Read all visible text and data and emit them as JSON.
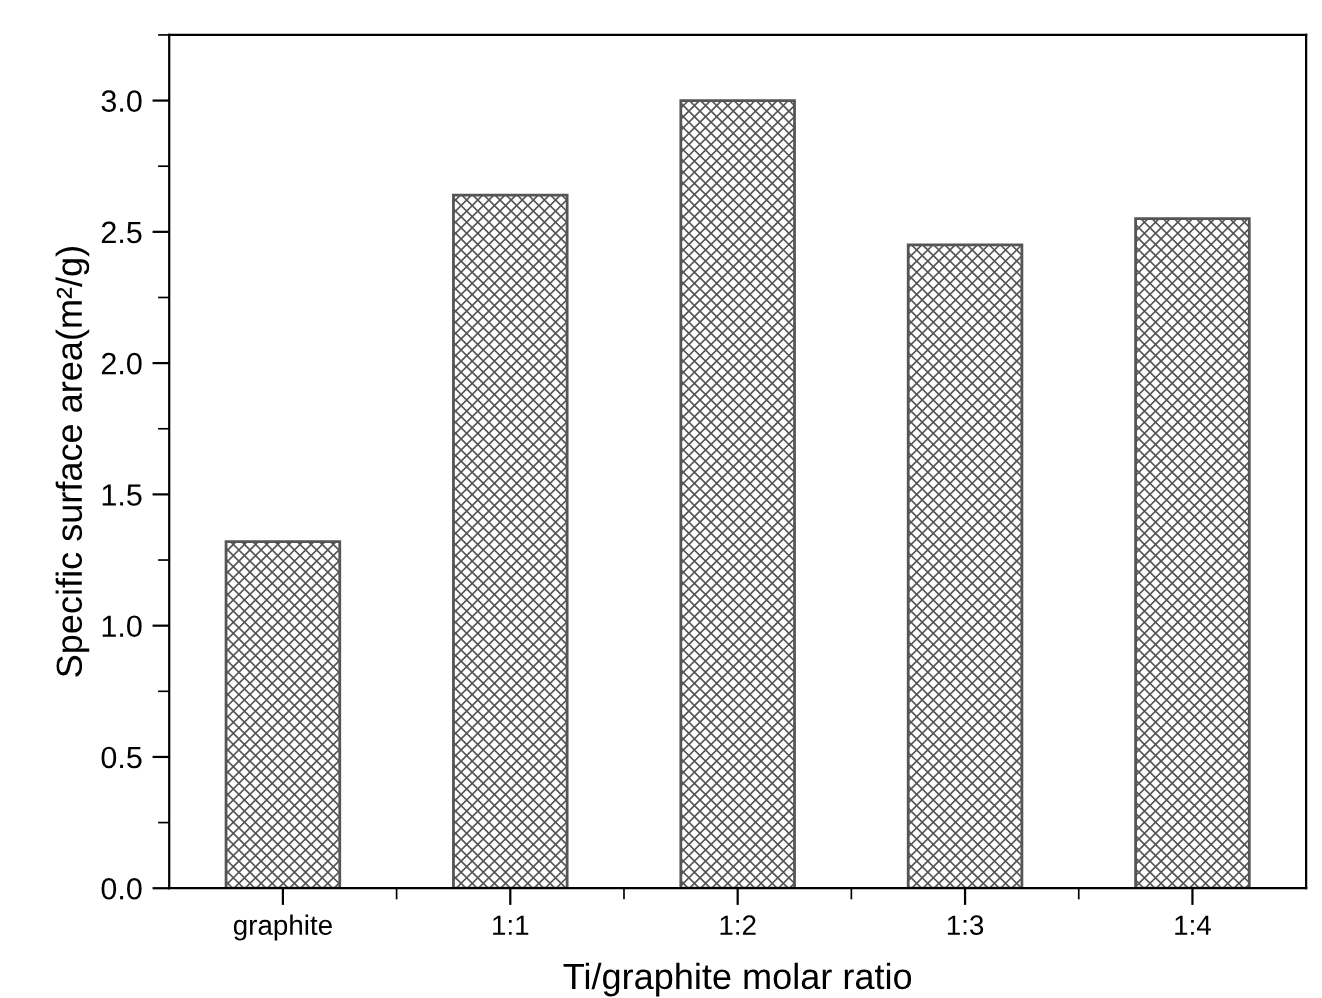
{
  "chart_data": {
    "type": "bar",
    "xlabel": "Ti/graphite molar ratio",
    "ylabel": "Specific surface area(m²/g)",
    "categories": [
      "graphite",
      "1:1",
      "1:2",
      "1:3",
      "1:4"
    ],
    "values": [
      1.32,
      2.64,
      3.0,
      2.45,
      2.55
    ],
    "color": "#555555",
    "ylim": [
      0,
      3.25
    ],
    "yticks": [
      {
        "value": 0,
        "label": "0.0"
      },
      {
        "value": 0.5,
        "label": "0.5"
      },
      {
        "value": 1,
        "label": "1.0"
      },
      {
        "value": 1.5,
        "label": "1.5"
      },
      {
        "value": 2,
        "label": "2.0"
      },
      {
        "value": 2.5,
        "label": "2.5"
      },
      {
        "value": 3,
        "label": "3.0"
      }
    ],
    "grid": false,
    "legend": false
  }
}
